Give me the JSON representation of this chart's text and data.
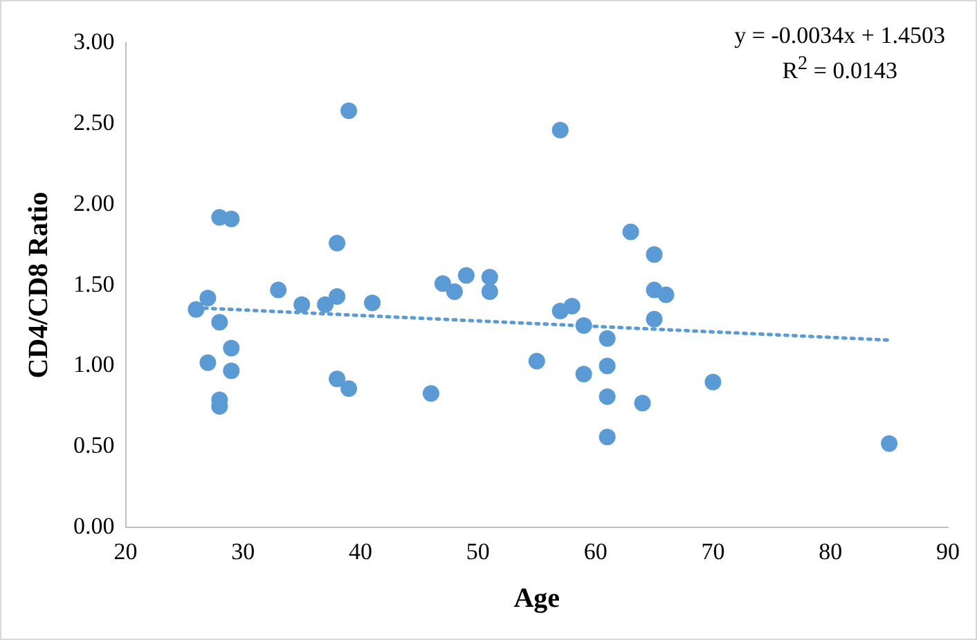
{
  "chart_data": {
    "type": "scatter",
    "xlabel": "Age",
    "ylabel": "CD4/CD8 Ratio",
    "xlim": [
      20,
      90
    ],
    "xticks": [
      20,
      30,
      40,
      50,
      60,
      70,
      80,
      90
    ],
    "ylim": [
      0,
      3
    ],
    "yticks": [
      {
        "value": 0,
        "label": "0.00"
      },
      {
        "value": 0.5,
        "label": "0.50"
      },
      {
        "value": 1,
        "label": "1.00"
      },
      {
        "value": 1.5,
        "label": "1.50"
      },
      {
        "value": 2,
        "label": "2.00"
      },
      {
        "value": 2.5,
        "label": "2.50"
      },
      {
        "value": 3,
        "label": "3.00"
      }
    ],
    "grid": false,
    "legend": false,
    "marker": "circle",
    "annotations": [
      "y = -0.0034x + 1.4503",
      "R$^{2}$ = 0.0143"
    ],
    "series": [
      {
        "color": "#5b9bd5",
        "x": [
          26,
          27,
          27,
          28,
          28,
          28,
          28,
          29,
          29,
          29,
          33,
          35,
          37,
          38,
          38,
          38,
          39,
          39,
          41,
          46,
          47,
          48,
          49,
          51,
          51,
          55,
          57,
          57,
          58,
          59,
          59,
          61,
          61,
          61,
          61,
          63,
          64,
          65,
          65,
          65,
          66,
          70,
          85
        ],
        "values": [
          1.35,
          1.42,
          1.02,
          1.92,
          1.27,
          0.79,
          0.75,
          1.91,
          1.11,
          0.97,
          1.47,
          1.38,
          1.38,
          1.43,
          1.76,
          0.92,
          2.58,
          0.86,
          1.39,
          0.83,
          1.51,
          1.46,
          1.56,
          1.55,
          1.46,
          1.03,
          2.46,
          1.34,
          1.37,
          1.25,
          0.95,
          1.17,
          1.0,
          0.81,
          0.56,
          1.83,
          0.77,
          1.69,
          1.47,
          1.29,
          1.44,
          0.9,
          0.52
        ]
      },
      {
        "type": "line",
        "color": "#5b9bd5",
        "line_style": "dotted",
        "marker": "none",
        "x": [
          26,
          85
        ],
        "values": [
          1.36,
          1.16
        ]
      }
    ]
  }
}
